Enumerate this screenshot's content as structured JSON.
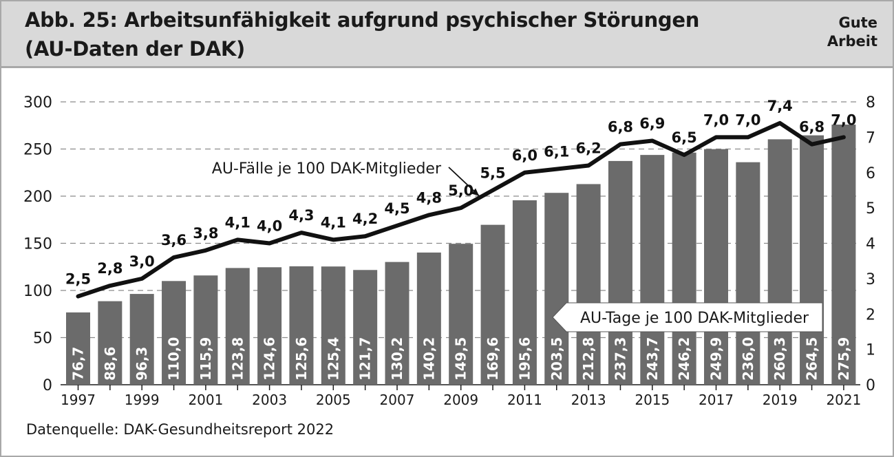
{
  "header": {
    "title_line1": "Abb. 25: Arbeitsunfähigkeit aufgrund psychischer Störungen",
    "title_line2": "(AU-Daten der DAK)",
    "brand_line1": "Gute",
    "brand_line2": "Arbeit"
  },
  "footer": {
    "source": "Datenquelle: DAK-Gesundheitsreport 2022"
  },
  "colors": {
    "header_bg": "#d9d9d9",
    "frame": "#a8a8a8",
    "bars": "#6b6b6b",
    "line": "#111111",
    "grid": "#8a8a8a"
  },
  "chart_data": {
    "type": "bar",
    "categories": [
      "1997",
      "1998",
      "1999",
      "2000",
      "2001",
      "2002",
      "2003",
      "2004",
      "2005",
      "2006",
      "2007",
      "2008",
      "2009",
      "2010",
      "2011",
      "2012",
      "2013",
      "2014",
      "2015",
      "2016",
      "2017",
      "2018",
      "2019",
      "2020",
      "2021"
    ],
    "x_tick_labels": [
      "1997",
      "1999",
      "2001",
      "2003",
      "2005",
      "2007",
      "2009",
      "2011",
      "2013",
      "2015",
      "2017",
      "2019",
      "2021"
    ],
    "series": [
      {
        "name": "AU-Tage je 100 DAK-Mitglieder",
        "axis": "left",
        "values": [
          76.7,
          88.6,
          96.3,
          110.0,
          115.9,
          123.8,
          124.6,
          125.6,
          125.4,
          121.7,
          130.2,
          140.2,
          149.5,
          169.6,
          195.6,
          203.5,
          212.8,
          237.3,
          243.7,
          246.2,
          249.9,
          236.0,
          260.3,
          264.5,
          275.9
        ],
        "labels": [
          "76,7",
          "88,6",
          "96,3",
          "110,0",
          "115,9",
          "123,8",
          "124,6",
          "125,6",
          "125,4",
          "121,7",
          "130,2",
          "140,2",
          "149,5",
          "169,6",
          "195,6",
          "203,5",
          "212,8",
          "237,3",
          "243,7",
          "246,2",
          "249,9",
          "236,0",
          "260,3",
          "264,5",
          "275,9"
        ]
      },
      {
        "name": "AU-Fälle je 100 DAK-Mitglieder",
        "axis": "right",
        "values": [
          2.5,
          2.8,
          3.0,
          3.6,
          3.8,
          4.1,
          4.0,
          4.3,
          4.1,
          4.2,
          4.5,
          4.8,
          5.0,
          5.5,
          6.0,
          6.1,
          6.2,
          6.8,
          6.9,
          6.5,
          7.0,
          7.0,
          7.4,
          6.8,
          7.0
        ],
        "labels": [
          "2,5",
          "2,8",
          "3,0",
          "3,6",
          "3,8",
          "4,1",
          "4,0",
          "4,3",
          "4,1",
          "4,2",
          "4,5",
          "4,8",
          "5,0",
          "5,5",
          "6,0",
          "6,1",
          "6,2",
          "6,8",
          "6,9",
          "6,5",
          "7,0",
          "7,0",
          "7,4",
          "6,8",
          "7,0"
        ]
      }
    ],
    "y_left": {
      "range": [
        0,
        300
      ],
      "ticks": [
        "0",
        "50",
        "100",
        "150",
        "200",
        "250",
        "300"
      ]
    },
    "y_right": {
      "range": [
        0,
        8
      ],
      "ticks": [
        "0",
        "1",
        "2",
        "3",
        "4",
        "5",
        "6",
        "7",
        "8"
      ]
    },
    "grid": true
  }
}
